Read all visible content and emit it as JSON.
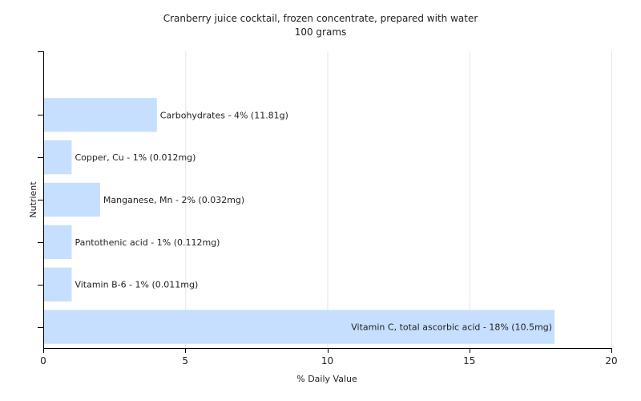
{
  "chart_data": {
    "type": "bar",
    "orientation": "horizontal",
    "title": "Cranberry juice cocktail, frozen concentrate, prepared with water",
    "subtitle": "100 grams",
    "xlabel": "% Daily Value",
    "ylabel": "Nutrient",
    "xlim": [
      0,
      20
    ],
    "xticks": [
      0,
      5,
      10,
      15,
      20
    ],
    "grid": "vertical",
    "bar_color": "#c6dffe",
    "categories": [
      "Carbohydrates",
      "Copper, Cu",
      "Manganese, Mn",
      "Pantothenic acid",
      "Vitamin B-6",
      "Vitamin C, total ascorbic acid"
    ],
    "values": [
      4,
      1,
      2,
      1,
      1,
      18
    ],
    "labels": [
      "Carbohydrates - 4% (11.81g)",
      "Copper, Cu - 1% (0.012mg)",
      "Manganese, Mn - 2% (0.032mg)",
      "Pantothenic acid - 1% (0.112mg)",
      "Vitamin B-6 - 1% (0.011mg)",
      "Vitamin C, total ascorbic acid - 18% (10.5mg)"
    ]
  }
}
